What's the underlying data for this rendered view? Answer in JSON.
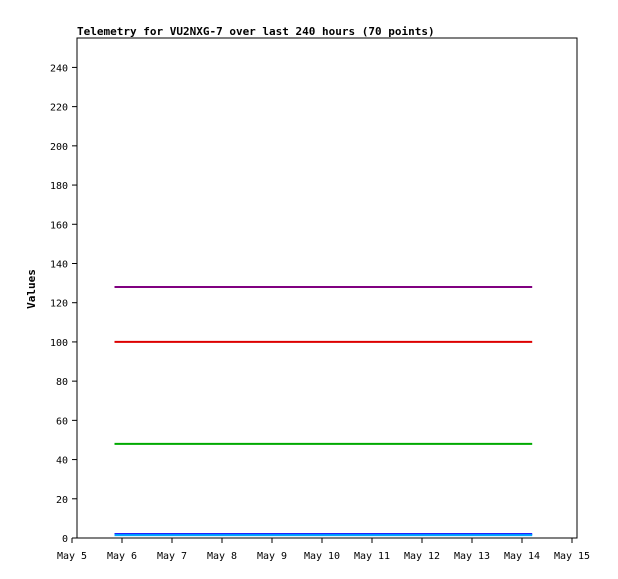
{
  "chart_data": {
    "type": "line",
    "title": "Telemetry for VU2NXG-7 over last 240 hours (70 points)",
    "xlabel": "",
    "ylabel": "Values",
    "x_ticks": [
      "May 5",
      "May 6",
      "May 7",
      "May 8",
      "May 9",
      "May 10",
      "May 11",
      "May 12",
      "May 13",
      "May 14",
      "May 15"
    ],
    "xlim": [
      "May 5",
      "May 15"
    ],
    "ylim": [
      0,
      255
    ],
    "y_ticks": [
      0,
      20,
      40,
      60,
      80,
      100,
      120,
      140,
      160,
      180,
      200,
      220,
      240
    ],
    "grid": false,
    "series": [
      {
        "color": "#800080",
        "x": [
          "May 5 18:00",
          "May 14 02:30"
        ],
        "values": [
          128,
          128
        ]
      },
      {
        "color": "#dd0000",
        "x": [
          "May 5 18:00",
          "May 14 02:30"
        ],
        "values": [
          100,
          100
        ]
      },
      {
        "color": "#00aa00",
        "x": [
          "May 5 18:00",
          "May 14 02:30"
        ],
        "values": [
          48,
          48
        ]
      },
      {
        "color": "#0000ff",
        "x": [
          "May 5 18:00",
          "May 14 02:30"
        ],
        "values": [
          2,
          2
        ]
      },
      {
        "color": "#00aaff",
        "x": [
          "May 5 18:00",
          "May 14 02:30"
        ],
        "values": [
          1.5,
          1.5
        ]
      }
    ]
  }
}
